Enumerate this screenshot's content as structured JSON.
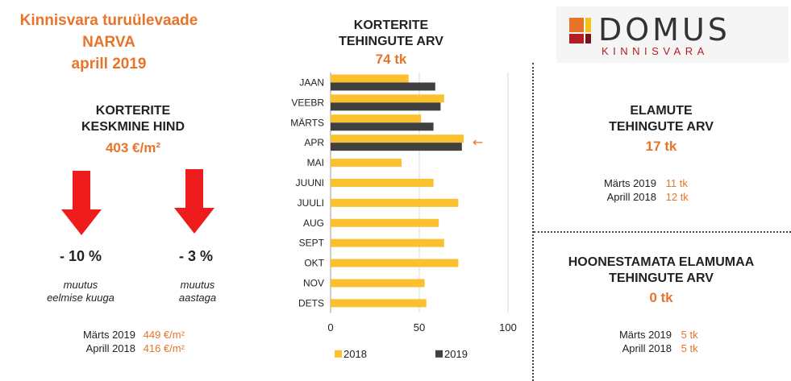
{
  "left": {
    "title_lines": [
      "Kinnisvara turuülevaade",
      "NARVA",
      "aprill 2019"
    ],
    "header_lines": [
      "KORTERITE",
      "KESKMINE HIND"
    ],
    "value": "403 €/m²",
    "arrow1": {
      "pct": "- 10 %",
      "note_lines": [
        "muutus",
        "eelmise kuuga"
      ]
    },
    "arrow2": {
      "pct": "- 3 %",
      "note_lines": [
        "muutus",
        "aastaga"
      ]
    },
    "compare": [
      {
        "label": "Märts 2019",
        "value": "449 €/m²"
      },
      {
        "label": "Aprill 2018",
        "value": "416 €/m²"
      }
    ],
    "colors": {
      "arrow": "#ee1c1c"
    }
  },
  "middle": {
    "header_lines": [
      "KORTERITE",
      "TEHINGUTE ARV"
    ],
    "value": "74 tk"
  },
  "right_top": {
    "header_lines": [
      "ELAMUTE",
      "TEHINGUTE ARV"
    ],
    "value": "17 tk",
    "compare": [
      {
        "label": "Märts 2019",
        "value": "11 tk"
      },
      {
        "label": "Aprill 2018",
        "value": "12 tk"
      }
    ]
  },
  "right_bottom": {
    "header_lines": [
      "HOONESTAMATA ELAMUMAA",
      "TEHINGUTE ARV"
    ],
    "value": "0 tk",
    "compare": [
      {
        "label": "Märts 2019",
        "value": "5 tk"
      },
      {
        "label": "Aprill 2018",
        "value": "5 tk"
      }
    ]
  },
  "logo": {
    "name": "DOMUS",
    "subtitle": "KINNISVARA"
  },
  "chart_data": {
    "type": "bar",
    "orientation": "horizontal",
    "categories": [
      "JAAN",
      "VEEBR",
      "MÄRTS",
      "APR",
      "MAI",
      "JUUNI",
      "JUULI",
      "AUG",
      "SEPT",
      "OKT",
      "NOV",
      "DETS"
    ],
    "series": [
      {
        "name": "2018",
        "color": "#fbc02d",
        "values": [
          44,
          64,
          51,
          75,
          40,
          58,
          72,
          61,
          64,
          72,
          53,
          54
        ]
      },
      {
        "name": "2019",
        "color": "#404040",
        "values": [
          59,
          62,
          58,
          74,
          null,
          null,
          null,
          null,
          null,
          null,
          null,
          null
        ]
      }
    ],
    "xlim": [
      0,
      100
    ],
    "xticks": [
      "0",
      "50",
      "100"
    ],
    "grid": true,
    "legend_position": "bottom",
    "annotation": {
      "category": "APR",
      "symbol": "←",
      "color": "#e8742a"
    }
  }
}
